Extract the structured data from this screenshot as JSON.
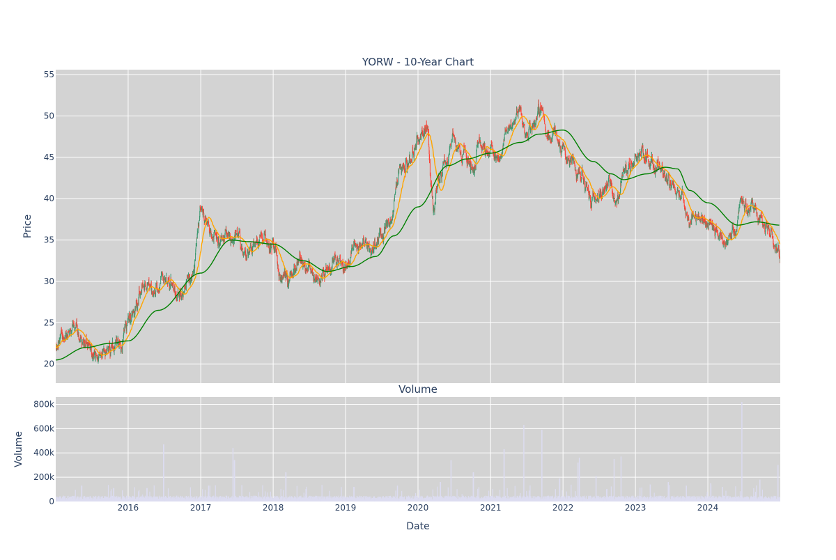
{
  "chart_data": [
    {
      "type": "candlestick",
      "title": "YORW - 10-Year Chart",
      "ylabel": "Price",
      "xlabel": "",
      "ylim": [
        17.7,
        55.6
      ],
      "x_range": [
        "2015-01-01",
        "2024-12-31"
      ],
      "yticks": [
        20,
        25,
        30,
        35,
        40,
        45,
        50,
        55
      ],
      "grid": true,
      "legend": "none",
      "colors": {
        "increasing": "#3d9970",
        "decreasing": "#ff4136",
        "background": "#d3d3d3",
        "grid": "#ffffff"
      },
      "price_anchors": [
        [
          "2015-01-01",
          22.4
        ],
        [
          "2015-02-15",
          23.5
        ],
        [
          "2015-04-01",
          24.5
        ],
        [
          "2015-05-15",
          23.2
        ],
        [
          "2015-07-01",
          21.6
        ],
        [
          "2015-08-15",
          21.0
        ],
        [
          "2015-10-01",
          21.5
        ],
        [
          "2015-11-15",
          22.8
        ],
        [
          "2016-01-01",
          24.8
        ],
        [
          "2016-02-15",
          27.5
        ],
        [
          "2016-04-01",
          29.5
        ],
        [
          "2016-05-15",
          28.5
        ],
        [
          "2016-07-01",
          30.5
        ],
        [
          "2016-08-15",
          29.0
        ],
        [
          "2016-10-01",
          28.8
        ],
        [
          "2016-11-15",
          30.5
        ],
        [
          "2017-01-01",
          38.5
        ],
        [
          "2017-02-15",
          35.5
        ],
        [
          "2017-04-01",
          35.0
        ],
        [
          "2017-05-15",
          34.5
        ],
        [
          "2017-07-01",
          35.5
        ],
        [
          "2017-08-15",
          33.0
        ],
        [
          "2017-10-01",
          34.5
        ],
        [
          "2017-11-15",
          35.5
        ],
        [
          "2018-01-01",
          34.0
        ],
        [
          "2018-02-15",
          30.5
        ],
        [
          "2018-04-01",
          30.5
        ],
        [
          "2018-05-15",
          32.5
        ],
        [
          "2018-07-01",
          31.5
        ],
        [
          "2018-08-15",
          30.0
        ],
        [
          "2018-10-01",
          31.0
        ],
        [
          "2018-11-15",
          32.5
        ],
        [
          "2019-01-01",
          31.5
        ],
        [
          "2019-02-15",
          33.5
        ],
        [
          "2019-04-01",
          34.5
        ],
        [
          "2019-05-15",
          34.0
        ],
        [
          "2019-07-01",
          35.5
        ],
        [
          "2019-08-15",
          37.0
        ],
        [
          "2019-10-01",
          43.5
        ],
        [
          "2019-11-15",
          44.0
        ],
        [
          "2020-01-01",
          47.0
        ],
        [
          "2020-02-15",
          48.5
        ],
        [
          "2020-03-20",
          38.0
        ],
        [
          "2020-04-15",
          42.5
        ],
        [
          "2020-05-15",
          44.5
        ],
        [
          "2020-07-01",
          47.5
        ],
        [
          "2020-08-15",
          45.5
        ],
        [
          "2020-10-01",
          44.0
        ],
        [
          "2020-11-15",
          46.5
        ],
        [
          "2021-01-01",
          46.0
        ],
        [
          "2021-02-15",
          44.5
        ],
        [
          "2021-04-01",
          48.5
        ],
        [
          "2021-05-15",
          50.0
        ],
        [
          "2021-07-01",
          48.0
        ],
        [
          "2021-08-15",
          49.5
        ],
        [
          "2021-09-15",
          51.5
        ],
        [
          "2021-10-15",
          47.0
        ],
        [
          "2021-11-15",
          48.0
        ],
        [
          "2022-01-01",
          46.0
        ],
        [
          "2022-02-15",
          44.0
        ],
        [
          "2022-04-01",
          43.0
        ],
        [
          "2022-05-15",
          40.0
        ],
        [
          "2022-07-01",
          40.0
        ],
        [
          "2022-08-15",
          42.0
        ],
        [
          "2022-10-01",
          39.5
        ],
        [
          "2022-11-15",
          44.0
        ],
        [
          "2023-01-01",
          45.5
        ],
        [
          "2023-02-15",
          45.0
        ],
        [
          "2023-04-01",
          44.0
        ],
        [
          "2023-05-15",
          42.5
        ],
        [
          "2023-07-01",
          42.0
        ],
        [
          "2023-08-15",
          41.0
        ],
        [
          "2023-10-01",
          37.5
        ],
        [
          "2023-11-15",
          37.5
        ],
        [
          "2024-01-01",
          37.5
        ],
        [
          "2024-02-15",
          35.5
        ],
        [
          "2024-04-01",
          35.0
        ],
        [
          "2024-05-15",
          36.0
        ],
        [
          "2024-06-15",
          40.0
        ],
        [
          "2024-08-01",
          38.5
        ],
        [
          "2024-09-15",
          38.5
        ],
        [
          "2024-11-01",
          36.0
        ],
        [
          "2024-12-31",
          32.8
        ]
      ],
      "ma_short_color": "#ffa500",
      "ma_long_color": "#008000",
      "ma_long_anchors": [
        [
          "2015-01-01",
          20.5
        ],
        [
          "2015-06-01",
          22.0
        ],
        [
          "2015-10-01",
          22.5
        ],
        [
          "2016-01-01",
          22.8
        ],
        [
          "2016-06-01",
          26.5
        ],
        [
          "2017-01-01",
          31.0
        ],
        [
          "2017-06-01",
          35.0
        ],
        [
          "2017-09-01",
          34.8
        ],
        [
          "2018-01-01",
          34.5
        ],
        [
          "2018-06-01",
          32.5
        ],
        [
          "2018-10-01",
          31.2
        ],
        [
          "2019-02-01",
          31.8
        ],
        [
          "2019-06-01",
          33.0
        ],
        [
          "2019-09-01",
          35.5
        ],
        [
          "2020-01-01",
          39.0
        ],
        [
          "2020-06-01",
          44.0
        ],
        [
          "2020-09-01",
          44.8
        ],
        [
          "2021-01-01",
          45.5
        ],
        [
          "2021-06-01",
          46.8
        ],
        [
          "2021-09-01",
          47.8
        ],
        [
          "2022-01-01",
          48.3
        ],
        [
          "2022-06-01",
          44.5
        ],
        [
          "2022-09-01",
          43.0
        ],
        [
          "2022-11-01",
          42.3
        ],
        [
          "2023-03-01",
          43.0
        ],
        [
          "2023-06-01",
          43.8
        ],
        [
          "2023-08-01",
          43.6
        ],
        [
          "2023-10-01",
          41.0
        ],
        [
          "2024-01-01",
          39.5
        ],
        [
          "2024-06-01",
          36.8
        ],
        [
          "2024-09-01",
          37.2
        ],
        [
          "2024-12-31",
          36.8
        ]
      ]
    },
    {
      "type": "bar",
      "title": "Volume",
      "ylabel": "Volume",
      "xlabel": "Date",
      "ylim": [
        0,
        860000
      ],
      "yticks": [
        0,
        200000,
        400000,
        600000,
        800000
      ],
      "ytick_labels": [
        "0",
        "200k",
        "400k",
        "600k",
        "800k"
      ],
      "xtick_labels": [
        "2016",
        "2017",
        "2018",
        "2019",
        "2020",
        "2021",
        "2022",
        "2023",
        "2024"
      ],
      "bar_color": "#e8e8f5",
      "baseline_volume": 30000,
      "spikes": [
        [
          "2015-05-12",
          130000
        ],
        [
          "2015-10-20",
          110000
        ],
        [
          "2016-04-05",
          110000
        ],
        [
          "2016-06-28",
          470000
        ],
        [
          "2017-02-10",
          130000
        ],
        [
          "2017-06-12",
          440000
        ],
        [
          "2017-06-20",
          340000
        ],
        [
          "2018-03-06",
          240000
        ],
        [
          "2018-06-15",
          60000
        ],
        [
          "2019-02-12",
          120000
        ],
        [
          "2019-09-20",
          130000
        ],
        [
          "2020-03-15",
          100000
        ],
        [
          "2020-04-23",
          160000
        ],
        [
          "2020-06-15",
          340000
        ],
        [
          "2020-10-06",
          240000
        ],
        [
          "2021-03-10",
          430000
        ],
        [
          "2021-06-18",
          630000
        ],
        [
          "2021-09-17",
          590000
        ],
        [
          "2021-12-15",
          190000
        ],
        [
          "2022-03-18",
          320000
        ],
        [
          "2022-03-25",
          360000
        ],
        [
          "2022-06-17",
          210000
        ],
        [
          "2022-09-16",
          350000
        ],
        [
          "2022-10-21",
          370000
        ],
        [
          "2023-03-17",
          140000
        ],
        [
          "2023-06-16",
          160000
        ],
        [
          "2023-09-15",
          130000
        ],
        [
          "2024-01-15",
          150000
        ],
        [
          "2024-03-15",
          120000
        ],
        [
          "2024-06-21",
          820000
        ],
        [
          "2024-09-20",
          180000
        ],
        [
          "2024-12-20",
          300000
        ]
      ]
    }
  ]
}
